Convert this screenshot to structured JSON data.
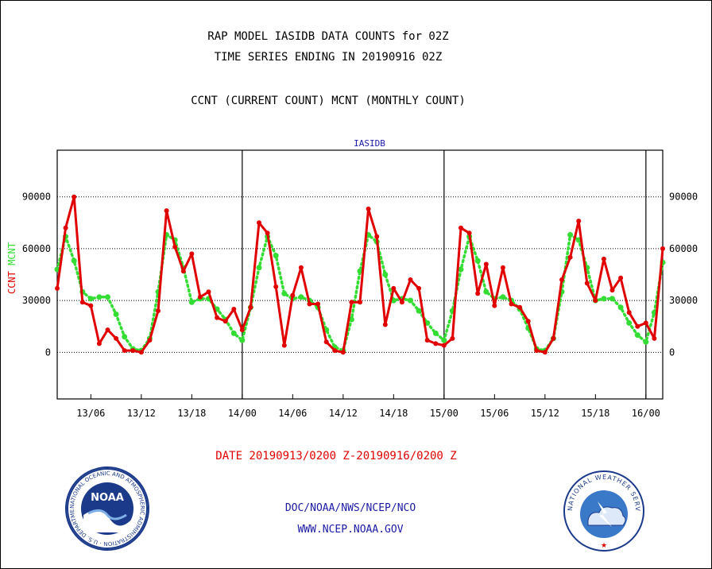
{
  "title_lines": [
    "RAP MODEL IASIDB DATA COUNTS for 02Z",
    "TIME SERIES ENDING IN 20190916 02Z"
  ],
  "subtitle": "CCNT (CURRENT COUNT) MCNT (MONTHLY COUNT)",
  "panel_label": "IASIDB",
  "date_range": "DATE 20190913/0200 Z-20190916/0200 Z",
  "footer": {
    "org": "DOC/NOAA/NWS/NCEP/NCO",
    "url": "WWW.NCEP.NOAA.GOV"
  },
  "logos": {
    "left": "NOAA",
    "right": "NATIONAL WEATHER SERVICE"
  },
  "colors": {
    "ccnt": "#e00000",
    "mcnt": "#33dd33",
    "axis": "#000000",
    "links": "#1a1aa6"
  },
  "chart_data": {
    "type": "line",
    "x_unit": "hours since 13/02Z",
    "xlim": [
      0,
      72
    ],
    "ylim": [
      -27000,
      117000
    ],
    "y_ticks": [
      0,
      30000,
      60000,
      90000
    ],
    "y_tick_labels": [
      "0",
      "30000",
      "60000",
      "90000"
    ],
    "x_ticks": [
      {
        "x": 4,
        "label": "13/06"
      },
      {
        "x": 10,
        "label": "13/12"
      },
      {
        "x": 16,
        "label": "13/18"
      },
      {
        "x": 22,
        "label": "14/00"
      },
      {
        "x": 28,
        "label": "14/06"
      },
      {
        "x": 34,
        "label": "14/12"
      },
      {
        "x": 40,
        "label": "14/18"
      },
      {
        "x": 46,
        "label": "15/00"
      },
      {
        "x": 52,
        "label": "15/06"
      },
      {
        "x": 58,
        "label": "15/12"
      },
      {
        "x": 64,
        "label": "15/18"
      },
      {
        "x": 70,
        "label": "16/00"
      }
    ],
    "day_dividers": [
      22,
      46,
      70
    ],
    "grid": "horizontal dotted",
    "ylabel_left": [
      "CCNT",
      "MCNT"
    ],
    "series": [
      {
        "name": "CCNT",
        "x": [
          0,
          1,
          2,
          3,
          4,
          5,
          6,
          7,
          8,
          9,
          10,
          11,
          12,
          13,
          14,
          15,
          16,
          17,
          18,
          19,
          20,
          21,
          22,
          23,
          24,
          25,
          26,
          27,
          28,
          29,
          30,
          31,
          32,
          33,
          34,
          35,
          36,
          37,
          38,
          39,
          40,
          41,
          42,
          43,
          44,
          45,
          46,
          47,
          48,
          49,
          50,
          51,
          52,
          53,
          54,
          55,
          56,
          57,
          58,
          59,
          60,
          61,
          62,
          63,
          64,
          65,
          66,
          67,
          68,
          69,
          70,
          71,
          72
        ],
        "values": [
          37000,
          72000,
          90000,
          29000,
          27000,
          5000,
          13000,
          8000,
          1000,
          1000,
          0,
          7000,
          24000,
          82000,
          61000,
          47000,
          57000,
          32000,
          35000,
          20000,
          18000,
          25000,
          13000,
          26000,
          75000,
          69000,
          38000,
          4000,
          33000,
          49000,
          28000,
          28000,
          6000,
          1000,
          0,
          29000,
          29000,
          83000,
          67000,
          16000,
          37000,
          29000,
          42000,
          37000,
          7000,
          5000,
          4000,
          8000,
          72000,
          69000,
          34000,
          51000,
          27000,
          49000,
          28000,
          26000,
          18000,
          1000,
          0,
          8000,
          42000,
          55000,
          76000,
          40000,
          30000,
          54000,
          36000,
          43000,
          23000,
          15000,
          17000,
          8000,
          60000
        ]
      },
      {
        "name": "MCNT",
        "x": [
          0,
          1,
          2,
          3,
          4,
          5,
          6,
          7,
          8,
          9,
          10,
          11,
          12,
          13,
          14,
          15,
          16,
          17,
          18,
          19,
          20,
          21,
          22,
          23,
          24,
          25,
          26,
          27,
          28,
          29,
          30,
          31,
          32,
          33,
          34,
          35,
          36,
          37,
          38,
          39,
          40,
          41,
          42,
          43,
          44,
          45,
          46,
          47,
          48,
          49,
          50,
          51,
          52,
          53,
          54,
          55,
          56,
          57,
          58,
          59,
          60,
          61,
          62,
          63,
          64,
          65,
          66,
          67,
          68,
          69,
          70,
          71,
          72
        ],
        "values": [
          48000,
          67000,
          53000,
          35000,
          31000,
          32000,
          32000,
          22000,
          9000,
          2000,
          1000,
          8000,
          35000,
          68000,
          65000,
          49000,
          29000,
          31000,
          31000,
          25000,
          19000,
          11000,
          7000,
          26000,
          49000,
          67000,
          56000,
          34000,
          31000,
          32000,
          30000,
          26000,
          13000,
          3000,
          1000,
          19000,
          47000,
          68000,
          64000,
          45000,
          30000,
          31000,
          30000,
          24000,
          17000,
          11000,
          7000,
          24000,
          48000,
          67000,
          53000,
          35000,
          31000,
          32000,
          30000,
          25000,
          14000,
          2000,
          1000,
          8000,
          35000,
          68000,
          65000,
          49000,
          30000,
          31000,
          31000,
          26000,
          17000,
          10000,
          6000,
          23000,
          52000
        ]
      }
    ]
  }
}
